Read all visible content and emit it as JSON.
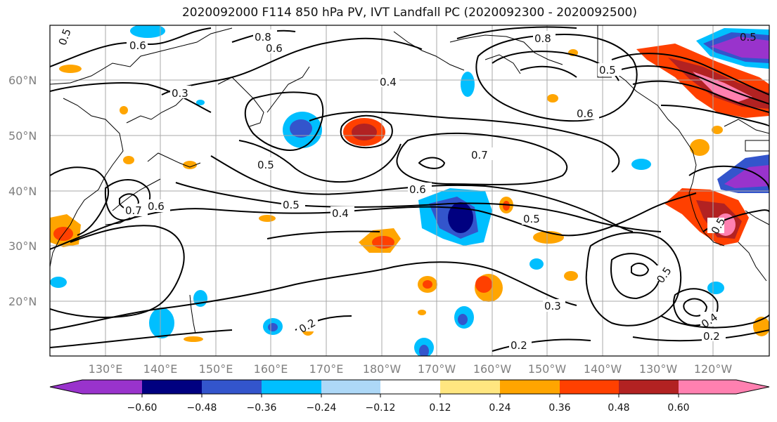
{
  "title": "2020092000 F114 850 hPa PV, IVT Landfall PC (2020092300 - 2020092500)",
  "lat_labels": [
    "60°N",
    "50°N",
    "40°N",
    "30°N",
    "20°N"
  ],
  "lon_labels": [
    "130°E",
    "140°E",
    "150°E",
    "160°E",
    "170°E",
    "180°W",
    "170°W",
    "160°W",
    "150°W",
    "140°W",
    "130°W",
    "120°W"
  ],
  "colorbar": {
    "colors": [
      "#9933cc",
      "#000080",
      "#3355cc",
      "#00bfff",
      "#add8f7",
      "#ffffff",
      "#ffe680",
      "#ffa500",
      "#ff4000",
      "#b22222",
      "#ff80b0"
    ],
    "tick_labels": [
      "−0.60",
      "−0.48",
      "−0.36",
      "−0.24",
      "−0.12",
      "0.12",
      "0.24",
      "0.36",
      "0.48",
      "0.60"
    ]
  },
  "contour_labels": [
    "0.5",
    "0.6",
    "0.8",
    "0.6",
    "0.8",
    "0.5",
    "0.3",
    "0.4",
    "0.6",
    "0.5",
    "0.7",
    "0.6",
    "0.5",
    "0.4",
    "0.7",
    "0.6",
    "0.5",
    "0.5",
    "0.5",
    "0.3",
    "0.2",
    "0.2",
    "0.4",
    "0.2",
    "0.5"
  ]
}
